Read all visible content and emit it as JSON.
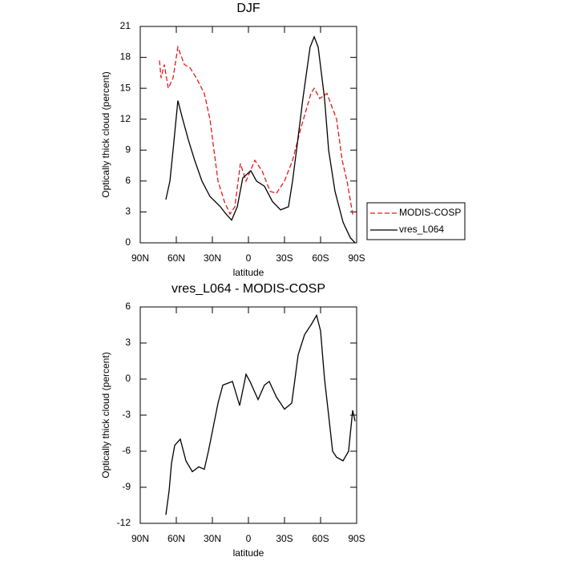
{
  "chart_data": [
    {
      "type": "line",
      "title": "DJF",
      "xlabel": "latitude",
      "ylabel": "Optically thick cloud (percent)",
      "xlim": [
        90,
        -90
      ],
      "xticks": [
        {
          "value": 90,
          "label": "90N"
        },
        {
          "value": 60,
          "label": "60N"
        },
        {
          "value": 30,
          "label": "30N"
        },
        0,
        {
          "value": -30,
          "label": "30S"
        },
        {
          "value": -60,
          "label": "60S"
        },
        {
          "value": -90,
          "label": "90S"
        }
      ],
      "ylim": [
        0,
        21
      ],
      "yticks": [
        0,
        3,
        6,
        9,
        12,
        15,
        18,
        21
      ],
      "legend": "right",
      "series": [
        {
          "name": "MODIS-COSP",
          "color": "#e41a1c",
          "dash": true,
          "x": [
            74,
            72.7,
            70,
            66.7,
            62.7,
            58.7,
            53.3,
            48.7,
            43.3,
            36.7,
            32,
            28.7,
            25.3,
            20,
            15.3,
            11.3,
            6.7,
            2,
            -5.3,
            -11.3,
            -18,
            -23.3,
            -30,
            -36.7,
            -43.3,
            -52,
            -54.7,
            -59.3,
            -65.3,
            -73.3,
            -78,
            -82,
            -86.7,
            -88.7
          ],
          "values": [
            17.7,
            16,
            17.3,
            15,
            16,
            19,
            17.3,
            17,
            16,
            14.5,
            12,
            9,
            6,
            4,
            2.8,
            3.5,
            7.7,
            6,
            8,
            7,
            5,
            4.8,
            6,
            8,
            11,
            14.5,
            15,
            14,
            14.5,
            12,
            8,
            6,
            2.8,
            3
          ]
        },
        {
          "name": "vres_L064",
          "color": "#000000",
          "dash": false,
          "x": [
            68.7,
            65.3,
            62.7,
            58.7,
            54.7,
            50,
            44.7,
            38.7,
            32,
            23.3,
            18.7,
            14,
            9.3,
            4.7,
            -2,
            -6.7,
            -13.3,
            -20,
            -26.7,
            -33.3,
            -36.7,
            -40,
            -45.3,
            -51.3,
            -54.7,
            -58,
            -63.3,
            -66.7,
            -72,
            -78.7,
            -84.7,
            -88.7
          ],
          "values": [
            4.2,
            6,
            9,
            13.8,
            12,
            10,
            8,
            6,
            4.5,
            3.5,
            2.8,
            2.2,
            3.5,
            6.3,
            7,
            6,
            5.5,
            4,
            3.2,
            3.5,
            6,
            9,
            14,
            19,
            20,
            19,
            14,
            9,
            5,
            2,
            0.5,
            0
          ]
        }
      ]
    },
    {
      "type": "line",
      "title": "vres_L064 - MODIS-COSP",
      "xlabel": "latitude",
      "ylabel": "Optically thick cloud (percent)",
      "xlim": [
        90,
        -90
      ],
      "xticks": [
        {
          "value": 90,
          "label": "90N"
        },
        {
          "value": 60,
          "label": "60N"
        },
        {
          "value": 30,
          "label": "30N"
        },
        0,
        {
          "value": -30,
          "label": "30S"
        },
        {
          "value": -60,
          "label": "60S"
        },
        {
          "value": -90,
          "label": "90S"
        }
      ],
      "ylim": [
        -12,
        6
      ],
      "yticks": [
        -12,
        -9,
        -6,
        -3,
        0,
        3,
        6
      ],
      "color": "#000000",
      "x": [
        68.7,
        66,
        64,
        61.3,
        56.7,
        52,
        46.7,
        41.3,
        36.7,
        33.3,
        29.3,
        25.3,
        21.3,
        13.3,
        7.3,
        2,
        -1.3,
        -8,
        -13.3,
        -17.3,
        -23.3,
        -30,
        -36,
        -38.7,
        -41.3,
        -46.7,
        -52,
        -56.7,
        -60,
        -63.3,
        -66.7,
        -70,
        -73.3,
        -78.7,
        -83.3,
        -86.7,
        -88.7
      ],
      "values": [
        -11.3,
        -9.3,
        -7,
        -5.5,
        -5,
        -6.8,
        -7.7,
        -7.3,
        -7.5,
        -6,
        -4,
        -2,
        -0.5,
        -0.2,
        -2.2,
        0.4,
        -0.2,
        -1.7,
        -0.5,
        -0.2,
        -1.5,
        -2.5,
        -2,
        0,
        2,
        3.7,
        4.5,
        5.3,
        4,
        0,
        -3,
        -6,
        -6.5,
        -6.8,
        -6,
        -2.6,
        -3.5
      ]
    }
  ]
}
